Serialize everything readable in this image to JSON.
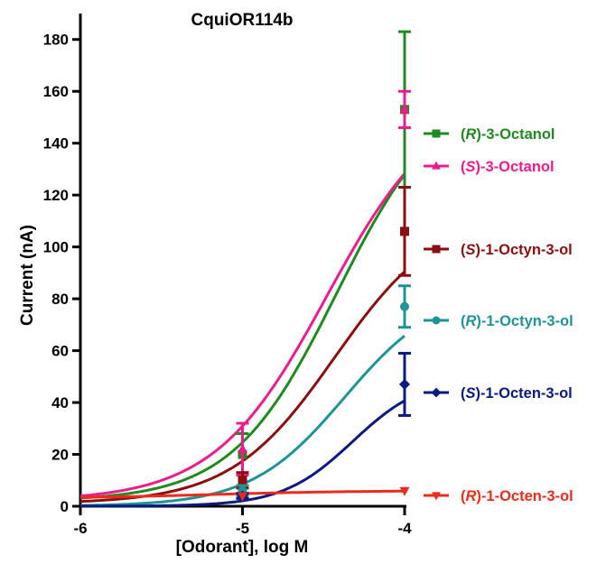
{
  "chart_data": {
    "type": "line",
    "title": "CquiOR114b",
    "xlabel": "[Odorant], log M",
    "ylabel": "Current (nA)",
    "xlim": [
      -6,
      -4
    ],
    "ylim": [
      0,
      190
    ],
    "x_ticks": [
      -6,
      -5,
      -4
    ],
    "y_ticks": [
      0,
      20,
      40,
      60,
      80,
      100,
      120,
      140,
      160,
      180
    ],
    "legend_position": "right",
    "grid": false,
    "series": [
      {
        "prefix": "(",
        "stereo": "R",
        "suffix": ")-3-Octanol",
        "color": "#1f8a1f",
        "marker": "square",
        "x": [
          -5,
          -4
        ],
        "y": [
          20,
          153
        ],
        "err": [
          8,
          30
        ],
        "curve": {
          "bottom": 2,
          "top": 162,
          "logEC50": -4.42,
          "hill": 1.35
        }
      },
      {
        "prefix": "(",
        "stereo": "S",
        "suffix": ")-3-Octanol",
        "color": "#ee1b8c",
        "marker": "triangle-up",
        "x": [
          -5,
          -4
        ],
        "y": [
          22,
          153
        ],
        "err": [
          10,
          7
        ],
        "curve": {
          "bottom": 2,
          "top": 160,
          "logEC50": -4.48,
          "hill": 1.25
        }
      },
      {
        "prefix": "(",
        "stereo": "S",
        "suffix": ")-1-Octyn-3-ol",
        "color": "#8b0f0f",
        "marker": "square",
        "x": [
          -5,
          -4
        ],
        "y": [
          10,
          106
        ],
        "err": [
          3,
          17
        ],
        "curve": {
          "bottom": 1,
          "top": 114,
          "logEC50": -4.43,
          "hill": 1.35
        }
      },
      {
        "prefix": "(",
        "stereo": "R",
        "suffix": ")-1-Octyn-3-ol",
        "color": "#1e9494",
        "marker": "circle",
        "x": [
          -5,
          -4
        ],
        "y": [
          6,
          77
        ],
        "err": [
          2,
          8
        ],
        "curve": {
          "bottom": 0,
          "top": 84,
          "logEC50": -4.37,
          "hill": 1.5
        }
      },
      {
        "prefix": "(",
        "stereo": "S",
        "suffix": ")-1-Octen-3-ol",
        "color": "#0a1a80",
        "marker": "diamond",
        "x": [
          -5,
          -4
        ],
        "y": [
          4,
          47
        ],
        "err": [
          1,
          12
        ],
        "curve": {
          "bottom": 0,
          "top": 50,
          "logEC50": -4.32,
          "hill": 2.0
        }
      },
      {
        "prefix": "(",
        "stereo": "R",
        "suffix": ")-1-Octen-3-ol",
        "color": "#ee2a1a",
        "marker": "triangle-down",
        "x": [
          -5,
          -4
        ],
        "y": [
          4,
          6
        ],
        "err": [
          0.6,
          0.6
        ],
        "curve": {
          "bottom": 3,
          "top": 6,
          "logEC50": -5.2,
          "hill": 1.0
        }
      }
    ]
  }
}
